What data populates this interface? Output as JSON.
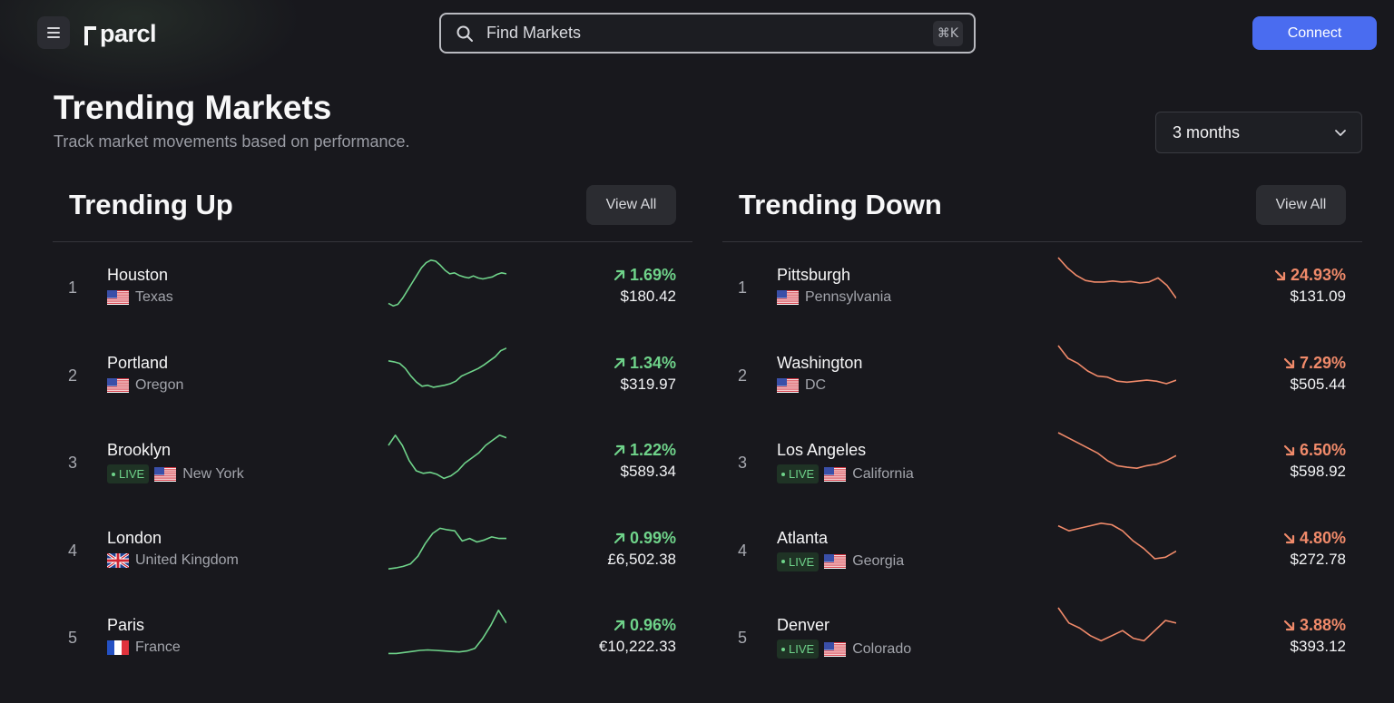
{
  "app": {
    "logo_text": "parcl"
  },
  "search": {
    "placeholder": "Find Markets",
    "shortcut": "⌘K"
  },
  "header": {
    "connect_label": "Connect"
  },
  "page": {
    "title": "Trending Markets",
    "subtitle": "Track market movements based on performance.",
    "period": "3 months"
  },
  "colors": {
    "up": "#6fd38a",
    "down": "#f08a6a",
    "accent": "#4a6cf0"
  },
  "trending_up": {
    "title": "Trending Up",
    "view_all": "View All",
    "items": [
      {
        "rank": "1",
        "city": "Houston",
        "region": "Texas",
        "flag": "us",
        "live": false,
        "live_label": "",
        "change": "1.69%",
        "price": "$180.42",
        "spark": [
          0.9,
          0.95,
          0.92,
          0.8,
          0.65,
          0.5,
          0.35,
          0.2,
          0.1,
          0.05,
          0.07,
          0.15,
          0.25,
          0.32,
          0.3,
          0.35,
          0.38,
          0.4,
          0.36,
          0.4,
          0.42,
          0.4,
          0.38,
          0.33,
          0.3,
          0.32
        ]
      },
      {
        "rank": "2",
        "city": "Portland",
        "region": "Oregon",
        "flag": "us",
        "live": false,
        "live_label": "",
        "change": "1.34%",
        "price": "$319.97",
        "spark": [
          0.3,
          0.32,
          0.35,
          0.45,
          0.6,
          0.72,
          0.8,
          0.78,
          0.82,
          0.8,
          0.78,
          0.75,
          0.7,
          0.6,
          0.55,
          0.5,
          0.45,
          0.38,
          0.3,
          0.22,
          0.1,
          0.05
        ]
      },
      {
        "rank": "3",
        "city": "Brooklyn",
        "region": "New York",
        "flag": "us",
        "live": true,
        "live_label": "LIVE",
        "change": "1.22%",
        "price": "$589.34",
        "spark": [
          0.25,
          0.05,
          0.25,
          0.55,
          0.75,
          0.8,
          0.78,
          0.82,
          0.9,
          0.85,
          0.75,
          0.6,
          0.5,
          0.4,
          0.25,
          0.15,
          0.05,
          0.1
        ]
      },
      {
        "rank": "4",
        "city": "London",
        "region": "United Kingdom",
        "flag": "uk",
        "live": false,
        "live_label": "",
        "change": "0.99%",
        "price": "£6,502.38",
        "spark": [
          0.95,
          0.93,
          0.9,
          0.85,
          0.7,
          0.45,
          0.25,
          0.15,
          0.18,
          0.2,
          0.4,
          0.35,
          0.42,
          0.38,
          0.32,
          0.35,
          0.35
        ]
      },
      {
        "rank": "5",
        "city": "Paris",
        "region": "France",
        "flag": "fr",
        "live": false,
        "live_label": "",
        "change": "0.96%",
        "price": "€10,222.33",
        "spark": [
          0.9,
          0.9,
          0.88,
          0.86,
          0.84,
          0.83,
          0.84,
          0.85,
          0.86,
          0.87,
          0.85,
          0.8,
          0.6,
          0.35,
          0.05,
          0.3
        ]
      }
    ]
  },
  "trending_down": {
    "title": "Trending Down",
    "view_all": "View All",
    "items": [
      {
        "rank": "1",
        "city": "Pittsburgh",
        "region": "Pennsylvania",
        "flag": "us",
        "live": false,
        "live_label": "",
        "change": "24.93%",
        "price": "$131.09",
        "spark": [
          0.0,
          0.2,
          0.35,
          0.45,
          0.48,
          0.48,
          0.46,
          0.48,
          0.47,
          0.5,
          0.48,
          0.4,
          0.55,
          0.8
        ]
      },
      {
        "rank": "2",
        "city": "Washington",
        "region": "DC",
        "flag": "us",
        "live": false,
        "live_label": "",
        "change": "7.29%",
        "price": "$505.44",
        "spark": [
          0.0,
          0.25,
          0.35,
          0.5,
          0.6,
          0.62,
          0.7,
          0.72,
          0.7,
          0.68,
          0.7,
          0.75,
          0.68
        ]
      },
      {
        "rank": "3",
        "city": "Los Angeles",
        "region": "California",
        "flag": "us",
        "live": true,
        "live_label": "LIVE",
        "change": "6.50%",
        "price": "$598.92",
        "spark": [
          0.0,
          0.1,
          0.2,
          0.3,
          0.4,
          0.55,
          0.65,
          0.68,
          0.7,
          0.65,
          0.62,
          0.55,
          0.45
        ]
      },
      {
        "rank": "4",
        "city": "Atlanta",
        "region": "Georgia",
        "flag": "us",
        "live": true,
        "live_label": "LIVE",
        "change": "4.80%",
        "price": "$272.78",
        "spark": [
          0.1,
          0.2,
          0.15,
          0.1,
          0.05,
          0.08,
          0.2,
          0.4,
          0.55,
          0.75,
          0.72,
          0.6
        ]
      },
      {
        "rank": "5",
        "city": "Denver",
        "region": "Colorado",
        "flag": "us",
        "live": true,
        "live_label": "LIVE",
        "change": "3.88%",
        "price": "$393.12",
        "spark": [
          0.0,
          0.3,
          0.4,
          0.55,
          0.65,
          0.55,
          0.45,
          0.6,
          0.65,
          0.45,
          0.25,
          0.3
        ]
      }
    ]
  }
}
